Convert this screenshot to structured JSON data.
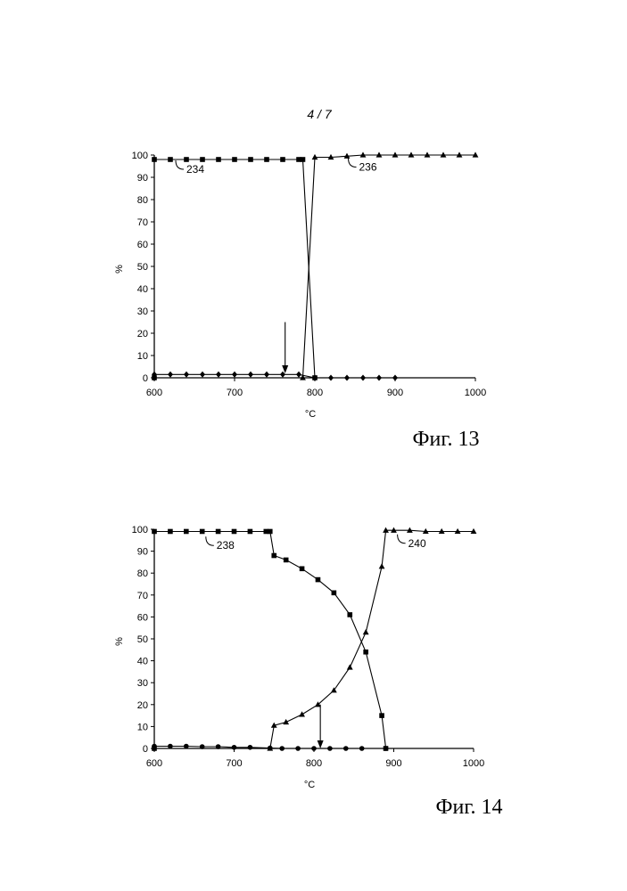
{
  "page_number": "4 / 7",
  "chart_data": [
    {
      "type": "line",
      "caption": "Фиг. 13",
      "xlabel": "°C",
      "ylabel": "%",
      "xlim": [
        600,
        1000
      ],
      "ylim": [
        0,
        100
      ],
      "xticks": [
        600,
        700,
        800,
        900,
        1000
      ],
      "yticks": [
        0,
        10,
        20,
        30,
        40,
        50,
        60,
        70,
        80,
        90,
        100
      ],
      "grid": false,
      "series": [
        {
          "name": "234",
          "marker": "square",
          "x": [
            600,
            600,
            620,
            640,
            660,
            680,
            700,
            720,
            740,
            760,
            780,
            785,
            800
          ],
          "y": [
            0,
            98,
            98,
            98,
            98,
            98,
            98,
            98,
            98,
            98,
            98,
            98,
            0
          ],
          "label_at": [
            640,
            94
          ]
        },
        {
          "name": "236",
          "marker": "triangle",
          "x": [
            785,
            800,
            820,
            840,
            860,
            880,
            900,
            920,
            940,
            960,
            980,
            1000
          ],
          "y": [
            0,
            99,
            99,
            99.5,
            100,
            100,
            100,
            100,
            100,
            100,
            100,
            100
          ],
          "label_at": [
            855,
            95
          ]
        },
        {
          "name": "",
          "marker": "diamond",
          "x": [
            600,
            620,
            640,
            660,
            680,
            700,
            720,
            740,
            760,
            780,
            800,
            820,
            840,
            860,
            880,
            900
          ],
          "y": [
            1.5,
            1.5,
            1.5,
            1.5,
            1.5,
            1.5,
            1.5,
            1.5,
            1.5,
            1.5,
            0,
            0,
            0,
            0,
            0,
            0
          ]
        }
      ],
      "arrow": {
        "x": 763,
        "from_y": 25,
        "to_y": 2
      }
    },
    {
      "type": "line",
      "caption": "Фиг. 14",
      "xlabel": "°C",
      "ylabel": "%",
      "xlim": [
        600,
        1000
      ],
      "ylim": [
        0,
        100
      ],
      "xticks": [
        600,
        700,
        800,
        900,
        1000
      ],
      "yticks": [
        0,
        10,
        20,
        30,
        40,
        50,
        60,
        70,
        80,
        90,
        100
      ],
      "grid": false,
      "series": [
        {
          "name": "238",
          "marker": "square",
          "x": [
            600,
            600,
            620,
            640,
            660,
            680,
            700,
            720,
            740,
            745,
            750,
            765,
            785,
            805,
            825,
            845,
            865,
            885,
            890
          ],
          "y": [
            0,
            99,
            99,
            99,
            99,
            99,
            99,
            99,
            99,
            99,
            88,
            86,
            82,
            77,
            71,
            61,
            44,
            15,
            0
          ],
          "label_at": [
            678,
            93
          ]
        },
        {
          "name": "240",
          "marker": "triangle",
          "x": [
            745,
            750,
            765,
            785,
            805,
            825,
            845,
            865,
            885,
            890,
            900,
            920,
            940,
            960,
            980,
            1000
          ],
          "y": [
            0,
            10.5,
            12,
            15.5,
            20,
            26.5,
            37,
            53,
            83,
            99.5,
            99.5,
            99.5,
            99,
            99,
            99,
            99
          ],
          "label_at": [
            918,
            94
          ]
        },
        {
          "name": "",
          "marker": "circle",
          "x": [
            600,
            620,
            640,
            660,
            680,
            700,
            720,
            745,
            760,
            780,
            800,
            820,
            840,
            860,
            890
          ],
          "y": [
            1,
            1,
            1,
            0.8,
            0.8,
            0.5,
            0.5,
            0.2,
            0,
            0,
            0,
            0,
            0,
            0,
            0
          ]
        }
      ],
      "arrow": {
        "x": 808,
        "from_y": 20,
        "to_y": 0
      }
    }
  ]
}
